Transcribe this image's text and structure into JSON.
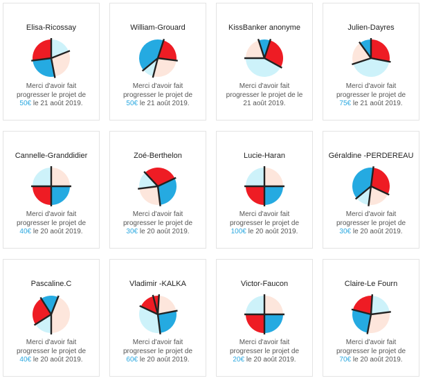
{
  "colors": {
    "red": "#ee1c24",
    "blue": "#25aae1",
    "peach": "#fde6dc",
    "lightblue": "#cdf2fa",
    "stroke": "#222222",
    "amount": "#2aa8e0"
  },
  "message_prefix": "Merci d'avoir fait progresser le projet de ",
  "message_middle": " le ",
  "cards": [
    {
      "name": "Elisa-Ricossay",
      "amount": "50€",
      "date": "21 août 2019.",
      "pie": [
        {
          "color": "lightblue",
          "share": 0.19
        },
        {
          "color": "peach",
          "share": 0.28
        },
        {
          "color": "blue",
          "share": 0.26
        },
        {
          "color": "red",
          "share": 0.27
        }
      ]
    },
    {
      "name": "William-Grouard",
      "amount": "50€",
      "date": "21 août 2019.",
      "pie": [
        {
          "color": "red",
          "share": 0.22
        },
        {
          "color": "peach",
          "share": 0.27
        },
        {
          "color": "lightblue",
          "share": 0.1
        },
        {
          "color": "blue",
          "share": 0.41
        }
      ]
    },
    {
      "name": "KissBanker anonyme",
      "amount": "",
      "date": "21 août 2019.",
      "pie": [
        {
          "color": "blue",
          "share": 0.1
        },
        {
          "color": "red",
          "share": 0.28
        },
        {
          "color": "lightblue",
          "share": 0.42
        },
        {
          "color": "peach",
          "share": 0.2
        }
      ]
    },
    {
      "name": "Julien-Dayres",
      "amount": "75€",
      "date": "21 août 2019.",
      "pie": [
        {
          "color": "blue",
          "share": 0.1
        },
        {
          "color": "red",
          "share": 0.28
        },
        {
          "color": "lightblue",
          "share": 0.42
        },
        {
          "color": "peach",
          "share": 0.2
        }
      ]
    },
    {
      "name": "Cannelle-Granddidier",
      "amount": "40€",
      "date": "20 août 2019.",
      "pie": [
        {
          "color": "peach",
          "share": 0.25
        },
        {
          "color": "blue",
          "share": 0.25
        },
        {
          "color": "red",
          "share": 0.25
        },
        {
          "color": "lightblue",
          "share": 0.25
        }
      ]
    },
    {
      "name": "Zoé-Berthelon",
      "amount": "30€",
      "date": "20 août 2019.",
      "pie": [
        {
          "color": "red",
          "share": 0.3
        },
        {
          "color": "blue",
          "share": 0.3
        },
        {
          "color": "peach",
          "share": 0.25
        },
        {
          "color": "lightblue",
          "share": 0.15
        }
      ]
    },
    {
      "name": "Lucie-Haran",
      "amount": "100€",
      "date": "20 août 2019.",
      "pie": [
        {
          "color": "peach",
          "share": 0.25
        },
        {
          "color": "blue",
          "share": 0.25
        },
        {
          "color": "red",
          "share": 0.25
        },
        {
          "color": "lightblue",
          "share": 0.25
        }
      ]
    },
    {
      "name": "Géraldine -PERDEREAU",
      "amount": "30€",
      "date": "20 août 2019.",
      "pie": [
        {
          "color": "red",
          "share": 0.3
        },
        {
          "color": "peach",
          "share": 0.2
        },
        {
          "color": "lightblue",
          "share": 0.12
        },
        {
          "color": "blue",
          "share": 0.38
        }
      ]
    },
    {
      "name": "Pascaline.C",
      "amount": "40€",
      "date": "20 août 2019.",
      "pie": [
        {
          "color": "peach",
          "share": 0.44
        },
        {
          "color": "lightblue",
          "share": 0.16
        },
        {
          "color": "red",
          "share": 0.25
        },
        {
          "color": "blue",
          "share": 0.15
        }
      ]
    },
    {
      "name": "Vladimir -KALKA",
      "amount": "60€",
      "date": "20 août 2019.",
      "pie": [
        {
          "color": "red",
          "share": 0.05
        },
        {
          "color": "peach",
          "share": 0.21
        },
        {
          "color": "blue",
          "share": 0.26
        },
        {
          "color": "lightblue",
          "share": 0.34
        },
        {
          "color": "red",
          "share": 0.14
        }
      ]
    },
    {
      "name": "Victor-Faucon",
      "amount": "20€",
      "date": "20 août 2019.",
      "pie": [
        {
          "color": "peach",
          "share": 0.25
        },
        {
          "color": "blue",
          "share": 0.25
        },
        {
          "color": "red",
          "share": 0.25
        },
        {
          "color": "lightblue",
          "share": 0.25
        }
      ]
    },
    {
      "name": "Claire-Le Fourn",
      "amount": "70€",
      "date": "20 août 2019.",
      "pie": [
        {
          "color": "lightblue",
          "share": 0.22
        },
        {
          "color": "peach",
          "share": 0.3
        },
        {
          "color": "blue",
          "share": 0.26
        },
        {
          "color": "red",
          "share": 0.22
        }
      ]
    }
  ]
}
